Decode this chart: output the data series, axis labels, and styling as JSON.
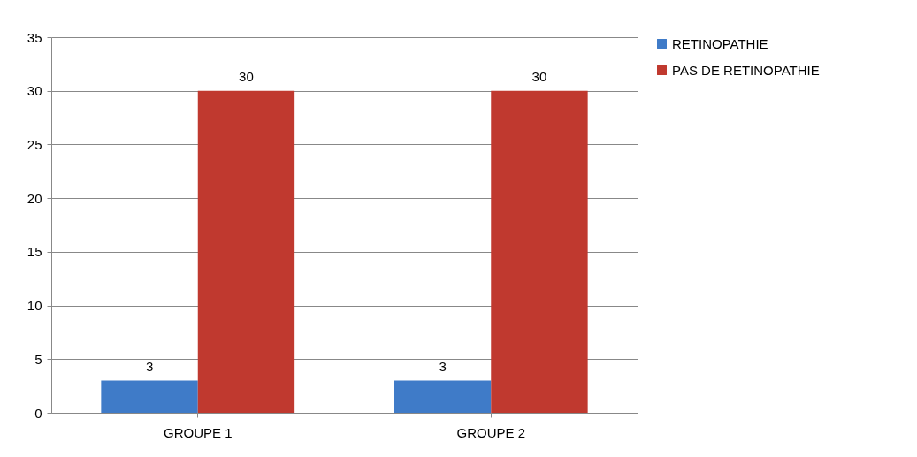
{
  "chart_data": {
    "type": "bar",
    "categories": [
      "GROUPE 1",
      "GROUPE 2"
    ],
    "series": [
      {
        "name": "RETINOPATHIE",
        "color": "#3f7bc8",
        "values": [
          3,
          3
        ]
      },
      {
        "name": "PAS DE RETINOPATHIE",
        "color": "#c0392f",
        "values": [
          30,
          30
        ]
      }
    ],
    "ylim": [
      0,
      35
    ],
    "yticks": [
      0,
      5,
      10,
      15,
      20,
      25,
      30,
      35
    ],
    "grid": "y",
    "legend": "right",
    "data_labels": true
  }
}
